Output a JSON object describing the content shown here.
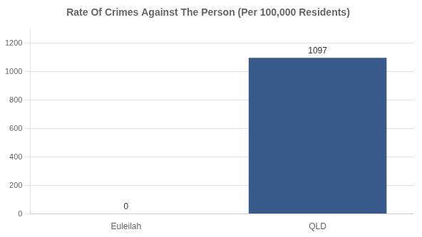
{
  "chart_data": {
    "type": "bar",
    "title": "Rate Of Crimes Against The Person (Per 100,000 Residents)",
    "categories": [
      "Euleilah",
      "QLD"
    ],
    "values": [
      0,
      1097
    ],
    "color": "#3a5a8c",
    "ylim": [
      0,
      1300
    ],
    "yticks": [
      0,
      200,
      400,
      600,
      800,
      1000,
      1200
    ],
    "grid": true,
    "data_labels": true
  }
}
